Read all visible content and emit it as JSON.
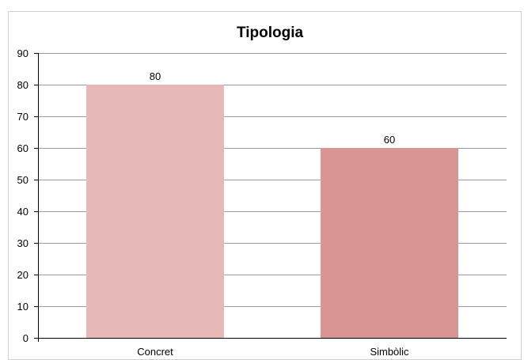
{
  "chart_data": {
    "type": "bar",
    "title": "Tipologia",
    "categories": [
      "Concret",
      "Simbòlic"
    ],
    "values": [
      80,
      60
    ],
    "data_labels": [
      "80",
      "60"
    ],
    "bar_colors": [
      "#e8b8b8",
      "#d99494"
    ],
    "ylim": [
      0,
      90
    ],
    "yticks": [
      0,
      10,
      20,
      30,
      40,
      50,
      60,
      70,
      80,
      90
    ],
    "grid": true,
    "legend": "none",
    "xlabel": "",
    "ylabel": ""
  }
}
